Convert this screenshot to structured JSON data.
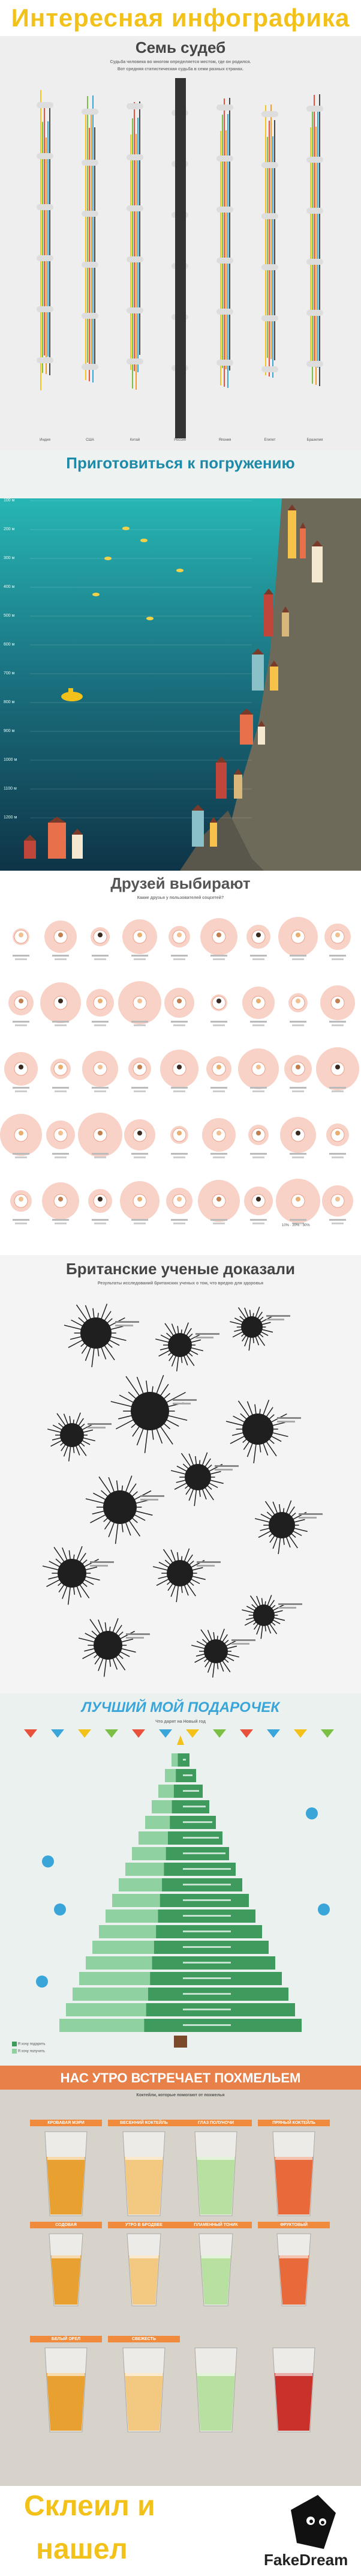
{
  "banner": {
    "title": "Интересная инфографика"
  },
  "s1": {
    "title": "Семь судеб",
    "subtitle": "Судьба человека во многом определяется местом, где он родился.",
    "subtitle2": "Вот средняя статистическая судьба в семи разных странах.",
    "countries": [
      "Индия",
      "США",
      "Китай",
      "Россия",
      "Япония",
      "Египет",
      "Бразилия"
    ],
    "colors": {
      "bg": "#eeeeee",
      "yellow": "#f5c424",
      "green": "#7bbf44",
      "red": "#e8513b",
      "orange": "#f49b2c",
      "blue": "#3aa5d8",
      "gray": "#444444"
    }
  },
  "s2": {
    "title": "Приготовиться к погружению",
    "depths": [
      "100 м",
      "200 м",
      "300 м",
      "400 м",
      "500 м",
      "600 м",
      "700 м",
      "800 м",
      "900 м",
      "1000 м",
      "1100 м",
      "1200 м"
    ],
    "colors": {
      "sky": "#eef2f1",
      "sea_top": "#24b2b2",
      "sea_bottom": "#0f3b4d",
      "land": "#6f6f5f"
    }
  },
  "s3": {
    "title": "Друзей выбирают",
    "subtitle": "Какие друзья у пользователей соцсетей?",
    "legend": "10% · 20% · 30%",
    "colors": {
      "bg": "#ffffff",
      "circle": "#f6c7b8",
      "circle2": "#eba694"
    }
  },
  "s4": {
    "title": "Британские ученые доказали",
    "subtitle": "Результаты исследований британских ученых о том, что вредно для здоровья",
    "colors": {
      "bg": "#f4f4f4",
      "ball": "#1f1f1f"
    }
  },
  "s5": {
    "title": "ЛУЧШИЙ МОЙ ПОДАРОЧЕК",
    "subtitle": "Что дарят на Новый год",
    "legend_a": "Я хочу подарить",
    "legend_b": "Я хочу получить",
    "colors": {
      "bg": "#eaf1ef",
      "tree": "#3f9a5e",
      "light": "#8fd1a0",
      "title": "#3aa5d8"
    }
  },
  "s6": {
    "title": "НАС УТРО ВСТРЕЧАЕТ ПОХМЕЛЬЕМ",
    "subtitle": "Коктейли, которые помогают от похмелья",
    "labels": [
      "КРОВАВАЯ МЭРИ",
      "ВЕСЕННИЙ КОКТЕЙЛЬ",
      "ГЛАЗ ПОЛУНОЧИ",
      "ПРЯНЫЙ КОКТЕЙЛЬ",
      "СОДОВАЯ",
      "УТРО В БРОДВЕЕ",
      "ПЛАМЕННЫЙ ТОНИК",
      "ФРУКТОВЫЙ",
      "БЕЛЫЙ ОРЕЛ",
      "СВЕЖЕСТЬ"
    ],
    "colors": {
      "bg": "#d7d2ca",
      "head": "#e8804a",
      "label": "#f08a3c"
    }
  },
  "footer": {
    "line1": "Склеил и",
    "line2": "нашел",
    "logo": "FakeDream"
  }
}
